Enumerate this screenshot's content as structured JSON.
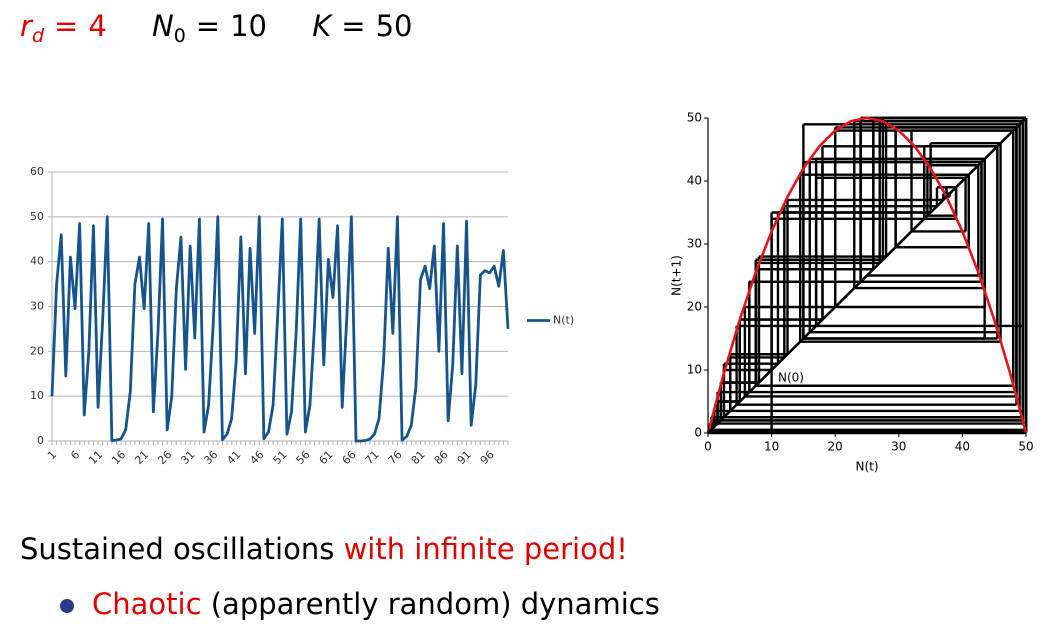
{
  "header": {
    "params": [
      {
        "name": "r",
        "sub": "d",
        "eq": "=",
        "value": "4"
      },
      {
        "name": "N",
        "sub": "0",
        "eq": "=",
        "value": "10"
      },
      {
        "name": "K",
        "eq": "=",
        "value": "50"
      }
    ]
  },
  "chart_data": [
    {
      "type": "line",
      "categories": [
        "1",
        null,
        null,
        null,
        null,
        "6",
        null,
        null,
        null,
        null,
        "11",
        null,
        null,
        null,
        null,
        "16",
        null,
        null,
        null,
        null,
        "21",
        null,
        null,
        null,
        null,
        "26",
        null,
        null,
        null,
        null,
        "31",
        null,
        null,
        null,
        null,
        "36",
        null,
        null,
        null,
        null,
        "41",
        null,
        null,
        null,
        null,
        "46",
        null,
        null,
        null,
        null,
        "51",
        null,
        null,
        null,
        null,
        "56",
        null,
        null,
        null,
        null,
        "61",
        null,
        null,
        null,
        null,
        "66",
        null,
        null,
        null,
        null,
        "71",
        null,
        null,
        null,
        null,
        "76",
        null,
        null,
        null,
        null,
        "81",
        null,
        null,
        null,
        null,
        "86",
        null,
        null,
        null,
        null,
        "91",
        null,
        null,
        null,
        null,
        "96",
        null,
        null,
        null,
        null
      ],
      "series": [
        {
          "name": "N(t)",
          "color": "#17548c",
          "values": [
            10,
            35,
            46,
            14.5,
            41,
            29.5,
            48.5,
            5.8,
            20,
            48,
            7.5,
            27,
            50,
            0.1,
            0.2,
            0.5,
            2.5,
            11,
            35,
            41,
            29.5,
            48.5,
            6.5,
            24,
            49.5,
            2.5,
            10,
            34,
            45.5,
            16,
            43.5,
            23,
            49.5,
            2,
            8,
            26,
            50,
            0.3,
            1.5,
            5,
            18,
            45.5,
            15,
            43,
            24,
            50,
            0.5,
            2,
            8,
            28,
            49.5,
            1.5,
            6.5,
            24,
            49.5,
            2,
            8,
            26,
            49.5,
            17,
            40.5,
            32,
            48,
            7.5,
            27.5,
            50,
            0,
            0,
            0.1,
            0.4,
            1.5,
            5,
            18,
            43,
            24,
            50,
            0.2,
            1,
            3.5,
            12,
            36,
            39,
            34,
            43.5,
            20,
            48.5,
            4.5,
            17,
            43.5,
            15,
            49,
            3.5,
            12.5,
            37,
            38,
            37.5,
            39,
            34.5,
            42.5,
            25
          ]
        }
      ],
      "ylim": [
        0,
        60
      ],
      "yticks": [
        0,
        10,
        20,
        30,
        40,
        50,
        60
      ],
      "grid": true,
      "legend": "right"
    },
    {
      "type": "line",
      "xlabel": "N(t)",
      "ylabel": "N(t+1)",
      "annotation": "N(0)",
      "xlim": [
        0,
        50
      ],
      "ylim": [
        0,
        50
      ],
      "xticks": [
        0,
        10,
        20,
        30,
        40,
        50
      ],
      "yticks": [
        0,
        10,
        20,
        30,
        40,
        50
      ],
      "series": [
        {
          "color": "#e8141c",
          "x": [
            0,
            2.5,
            5,
            7.5,
            10,
            12.5,
            15,
            17.5,
            20,
            22.5,
            25,
            27.5,
            30,
            32.5,
            35,
            37.5,
            40,
            42.5,
            45,
            47.5,
            50
          ],
          "y": [
            0,
            9.5,
            18,
            25.5,
            32,
            37.5,
            42,
            45.5,
            48,
            49.5,
            50,
            49.5,
            48,
            45.5,
            42,
            37.5,
            32,
            25.5,
            18,
            9.5,
            0
          ]
        },
        {
          "color": "#000000",
          "x": [
            0,
            50
          ],
          "y": [
            0,
            50
          ]
        }
      ],
      "cobweb_color": "#000000"
    }
  ],
  "text": {
    "line1": {
      "plain": "Sustained oscillations ",
      "highlight": "with infinite period!"
    },
    "bullet": {
      "highlight": "Chaotic",
      "plain": " (apparently random) dynamics"
    }
  }
}
